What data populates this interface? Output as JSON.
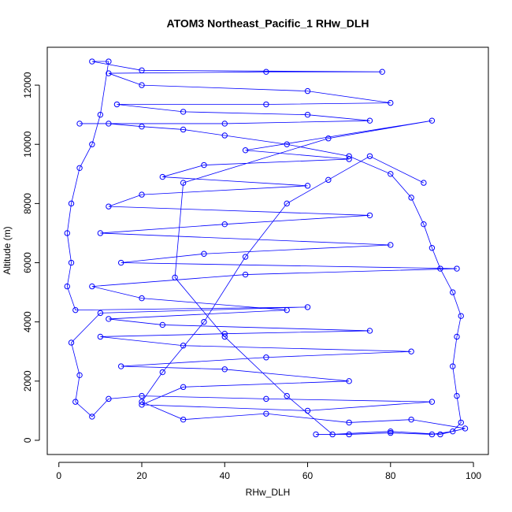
{
  "chart_data": {
    "type": "line",
    "title": "ATOM3 Northeast_Pacific_1 RHw_DLH",
    "x_label": "RHw_DLH",
    "y_label": "Altitude (m)",
    "xlim": [
      -2.8,
      103.6
    ],
    "ylim": [
      -480,
      13280
    ],
    "xticks": [
      0,
      20,
      40,
      60,
      80,
      100
    ],
    "yticks": [
      0,
      2000,
      4000,
      6000,
      8000,
      10000,
      12000
    ],
    "markers": true,
    "grid": false,
    "series": [
      {
        "color": "#0000ff",
        "x": [
          62,
          70,
          80,
          90,
          95,
          97,
          96,
          95,
          96,
          97,
          95,
          92,
          90,
          88,
          85,
          80,
          70,
          55,
          40,
          30,
          20,
          12,
          5,
          40,
          75,
          60,
          30,
          14,
          50,
          80,
          60,
          20,
          12,
          50,
          78,
          20,
          8,
          12,
          10,
          8,
          5,
          3,
          2,
          3,
          2,
          4,
          60,
          10,
          3,
          5,
          4,
          8,
          12,
          20,
          50,
          90,
          60,
          20,
          30,
          70,
          40,
          15,
          50,
          85,
          30,
          10,
          40,
          75,
          25,
          12,
          55,
          20,
          8,
          45,
          96,
          15,
          35,
          80,
          10,
          40,
          75,
          12,
          20,
          60,
          25,
          35,
          70,
          45,
          90,
          65,
          30,
          28,
          40,
          55,
          66,
          80,
          92,
          98,
          85,
          70,
          50,
          30,
          20,
          25,
          35,
          45,
          55,
          65,
          75,
          88
        ],
        "values": [
          200,
          200,
          250,
          200,
          300,
          600,
          1500,
          2500,
          3500,
          4200,
          5000,
          5800,
          6500,
          7300,
          8200,
          9000,
          9600,
          10000,
          10300,
          10500,
          10600,
          10700,
          10700,
          10700,
          10800,
          11000,
          11100,
          11350,
          11350,
          11400,
          11800,
          12000,
          12400,
          12450,
          12450,
          12500,
          12800,
          12800,
          11000,
          10000,
          9200,
          8000,
          7000,
          6000,
          5200,
          4400,
          4500,
          4300,
          3300,
          2200,
          1300,
          800,
          1400,
          1500,
          1400,
          1300,
          1000,
          1200,
          1800,
          2000,
          2400,
          2500,
          2800,
          3000,
          3200,
          3500,
          3600,
          3700,
          3900,
          4100,
          4400,
          4800,
          5200,
          5600,
          5800,
          6000,
          6300,
          6600,
          7000,
          7300,
          7600,
          7900,
          8300,
          8600,
          8900,
          9300,
          9500,
          9800,
          10800,
          10200,
          8700,
          5500,
          3500,
          1500,
          200,
          300,
          200,
          400,
          700,
          600,
          900,
          700,
          1300,
          2300,
          4000,
          6200,
          8000,
          8800,
          9600,
          8700
        ]
      }
    ]
  }
}
